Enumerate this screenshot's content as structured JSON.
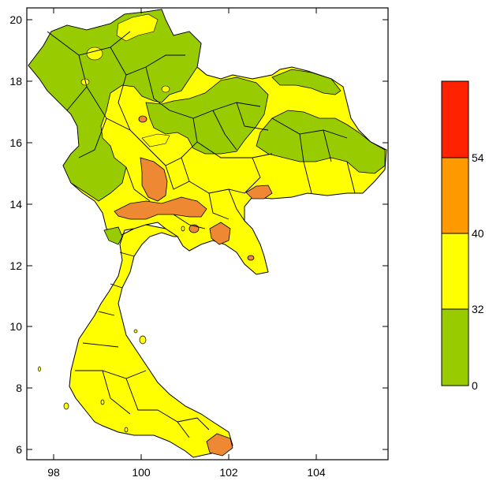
{
  "map": {
    "x_ticks": [
      "98",
      "100",
      "102",
      "104"
    ],
    "y_ticks": [
      "6",
      "8",
      "10",
      "12",
      "14",
      "16",
      "18",
      "20"
    ]
  },
  "legend": {
    "bins": [
      {
        "label": "0",
        "color": "#99cc00"
      },
      {
        "label": "32",
        "color": "#ffff00"
      },
      {
        "label": "40",
        "color": "#ff9900"
      },
      {
        "label": "54",
        "color": "#ff2200"
      }
    ]
  },
  "colors": {
    "low": "#99cc00",
    "mid": "#ffff00",
    "high": "#ee8833",
    "top": "#ff2200",
    "boundary": "#000000"
  }
}
